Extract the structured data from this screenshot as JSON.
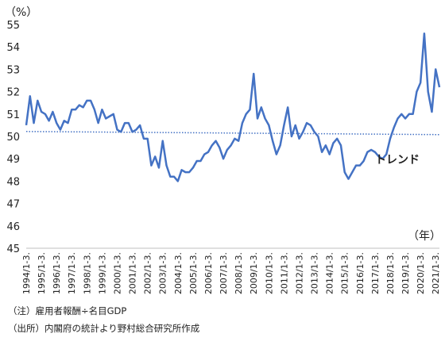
{
  "chart_data": {
    "type": "line",
    "ylabel": "（%）",
    "x_unit_label": "（年）",
    "ylim": [
      45,
      55
    ],
    "yticks": [
      45,
      46,
      47,
      48,
      49,
      50,
      51,
      52,
      53,
      54,
      55
    ],
    "grid": false,
    "colors": {
      "actual": "#4472C4",
      "trend": "#4472C4"
    },
    "x_tick_labels": [
      "1994/1-3.",
      "1995/1-3.",
      "1996/1-3.",
      "1997/1-3.",
      "1998/1-3.",
      "1999/1-3.",
      "2000/1-3.",
      "2001/1-3.",
      "2002/1-3.",
      "2003/1-3.",
      "2004/1-3.",
      "2005/1-3.",
      "2006/1-3.",
      "2007/1-3.",
      "2008/1-3.",
      "2009/1-3.",
      "2010/1-3.",
      "2011/1-3.",
      "2012/1-3.",
      "2013/1-3.",
      "2014/1-3.",
      "2015/1-3.",
      "2016/1-3.",
      "2017/1-3.",
      "2018/1-3.",
      "2019/1-3.",
      "2020/1-3.",
      "2021/1-3."
    ],
    "x_start": "1994 Q1",
    "series": [
      {
        "name": "",
        "style": "solid",
        "values": [
          50.5,
          51.8,
          50.6,
          51.6,
          51.1,
          51.0,
          50.7,
          51.1,
          50.6,
          50.3,
          50.7,
          50.6,
          51.2,
          51.2,
          51.4,
          51.3,
          51.6,
          51.6,
          51.2,
          50.6,
          51.2,
          50.8,
          50.9,
          51.0,
          50.3,
          50.2,
          50.6,
          50.6,
          50.2,
          50.3,
          50.5,
          49.9,
          49.9,
          48.7,
          49.1,
          48.6,
          49.8,
          48.7,
          48.2,
          48.2,
          48.0,
          48.5,
          48.4,
          48.4,
          48.6,
          48.9,
          48.9,
          49.2,
          49.3,
          49.6,
          49.8,
          49.5,
          49.0,
          49.4,
          49.6,
          49.9,
          49.8,
          50.6,
          51.0,
          51.2,
          52.8,
          50.8,
          51.3,
          50.8,
          50.5,
          49.8,
          49.2,
          49.6,
          50.5,
          51.3,
          50.0,
          50.5,
          49.9,
          50.2,
          50.6,
          50.5,
          50.2,
          50.0,
          49.3,
          49.6,
          49.2,
          49.7,
          49.9,
          49.6,
          48.4,
          48.1,
          48.4,
          48.7,
          48.7,
          48.9,
          49.3,
          49.4,
          49.3,
          49.1,
          49.0,
          49.2,
          49.9,
          50.4,
          50.8,
          51.0,
          50.8,
          51.0,
          51.0,
          52.0,
          52.4,
          54.6,
          52.0,
          51.1,
          53.0,
          52.2
        ]
      },
      {
        "name": "トレンド",
        "style": "dotted",
        "values": [
          50.22,
          50.08
        ]
      }
    ]
  },
  "notes": {
    "note1": "（注）雇用者報酬÷名目GDP",
    "note2": "（出所）内閣府の統計より野村総合研究所作成"
  }
}
